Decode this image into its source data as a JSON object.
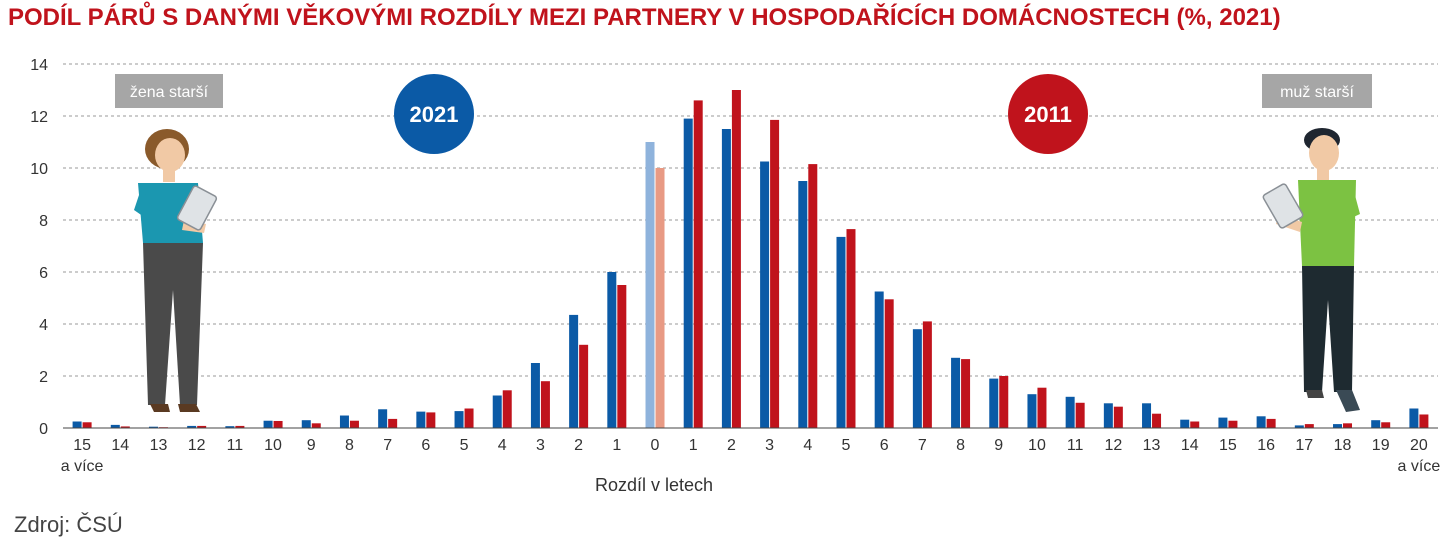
{
  "chart_data": {
    "type": "bar",
    "title": "PODÍL PÁRŮ S DANÝMI VĚKOVÝMI ROZDÍLY MEZI PARTNERY V HOSPODAŘÍCÍCH DOMÁCNOSTECH (%, 2021)",
    "xlabel": "Rozdíl v letech",
    "ylabel": "",
    "ylim": [
      0,
      14
    ],
    "yticks": [
      "0",
      "2",
      "4",
      "6",
      "8",
      "10",
      "12",
      "14"
    ],
    "categories": [
      {
        "label": "15",
        "sub": "a více"
      },
      {
        "label": "14",
        "sub": ""
      },
      {
        "label": "13",
        "sub": ""
      },
      {
        "label": "12",
        "sub": ""
      },
      {
        "label": "11",
        "sub": ""
      },
      {
        "label": "10",
        "sub": ""
      },
      {
        "label": "9",
        "sub": ""
      },
      {
        "label": "8",
        "sub": ""
      },
      {
        "label": "7",
        "sub": ""
      },
      {
        "label": "6",
        "sub": ""
      },
      {
        "label": "5",
        "sub": ""
      },
      {
        "label": "4",
        "sub": ""
      },
      {
        "label": "3",
        "sub": ""
      },
      {
        "label": "2",
        "sub": ""
      },
      {
        "label": "1",
        "sub": ""
      },
      {
        "label": "0",
        "sub": ""
      },
      {
        "label": "1",
        "sub": ""
      },
      {
        "label": "2",
        "sub": ""
      },
      {
        "label": "3",
        "sub": ""
      },
      {
        "label": "4",
        "sub": ""
      },
      {
        "label": "5",
        "sub": ""
      },
      {
        "label": "6",
        "sub": ""
      },
      {
        "label": "7",
        "sub": ""
      },
      {
        "label": "8",
        "sub": ""
      },
      {
        "label": "9",
        "sub": ""
      },
      {
        "label": "10",
        "sub": ""
      },
      {
        "label": "11",
        "sub": ""
      },
      {
        "label": "12",
        "sub": ""
      },
      {
        "label": "13",
        "sub": ""
      },
      {
        "label": "14",
        "sub": ""
      },
      {
        "label": "15",
        "sub": ""
      },
      {
        "label": "16",
        "sub": ""
      },
      {
        "label": "17",
        "sub": ""
      },
      {
        "label": "18",
        "sub": ""
      },
      {
        "label": "19",
        "sub": ""
      },
      {
        "label": "20",
        "sub": "a více"
      }
    ],
    "series": [
      {
        "name": "2021",
        "color": "#0b5aa6",
        "highlight_color": "#8fb3dc",
        "values": [
          0.25,
          0.12,
          0.05,
          0.08,
          0.07,
          0.28,
          0.3,
          0.48,
          0.72,
          0.63,
          0.65,
          1.25,
          2.5,
          4.35,
          6.0,
          11.0,
          11.9,
          11.5,
          10.25,
          9.5,
          7.35,
          5.25,
          3.8,
          2.7,
          1.9,
          1.3,
          1.2,
          0.95,
          0.95,
          0.32,
          0.4,
          0.45,
          0.1,
          0.15,
          0.3,
          0.75
        ]
      },
      {
        "name": "2011",
        "color": "#c0131c",
        "highlight_color": "#e89a84",
        "values": [
          0.22,
          0.06,
          0.03,
          0.08,
          0.08,
          0.27,
          0.18,
          0.28,
          0.35,
          0.6,
          0.75,
          1.45,
          1.8,
          3.2,
          5.5,
          10.0,
          12.6,
          13.0,
          11.85,
          10.15,
          7.65,
          4.95,
          4.1,
          2.65,
          2.0,
          1.55,
          0.97,
          0.82,
          0.55,
          0.25,
          0.28,
          0.35,
          0.15,
          0.18,
          0.22,
          0.52
        ]
      }
    ],
    "highlight_category_index": 15,
    "grid": true,
    "badges": [
      {
        "text": "2021",
        "color": "#0b5aa6"
      },
      {
        "text": "2011",
        "color": "#c0131c"
      }
    ],
    "tags": [
      {
        "text": "žena starší",
        "side": "left"
      },
      {
        "text": "muž starší",
        "side": "right"
      }
    ]
  },
  "source": "Zdroj: ČSÚ"
}
